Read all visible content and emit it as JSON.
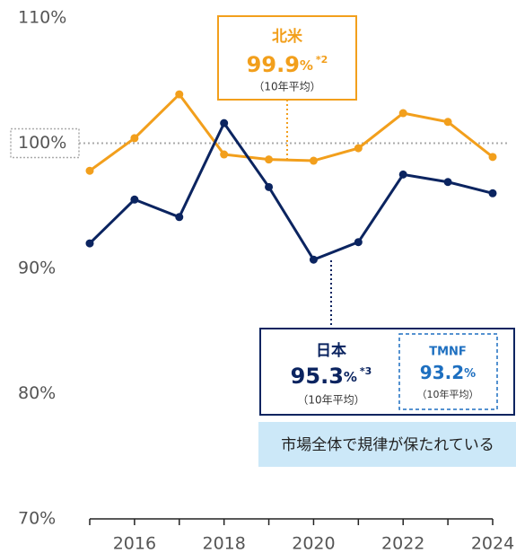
{
  "chart_data": {
    "type": "line",
    "x": [
      2015,
      2016,
      2017,
      2018,
      2019,
      2020,
      2021,
      2022,
      2023,
      2024
    ],
    "series": [
      {
        "name": "北米",
        "color": "#f29f1c",
        "values": [
          97.8,
          100.4,
          103.9,
          99.1,
          98.7,
          98.6,
          99.6,
          102.4,
          101.7,
          98.9
        ]
      },
      {
        "name": "日本",
        "color": "#0b2460",
        "values": [
          92.0,
          95.5,
          94.1,
          101.6,
          96.5,
          90.7,
          92.1,
          97.5,
          96.9,
          96.0
        ]
      }
    ],
    "xlim": [
      2015,
      2024
    ],
    "xticks": [
      2016,
      2018,
      2020,
      2022,
      2024
    ],
    "ylim": [
      70,
      110
    ],
    "yticks": [
      {
        "value": 70,
        "label": "70%"
      },
      {
        "value": 80,
        "label": "80%"
      },
      {
        "value": 90,
        "label": "90%"
      },
      {
        "value": 100,
        "label": "100%"
      },
      {
        "value": 110,
        "label": "110%"
      }
    ],
    "reference_line": 100,
    "annotations": [
      {
        "title": "北米",
        "value": 99.9,
        "unit": "%",
        "note": "*2",
        "sub": "（10年平均）"
      },
      {
        "title": "日本",
        "value": 95.3,
        "unit": "%",
        "note": "*3",
        "sub": "（10年平均）"
      },
      {
        "title": "TMNF",
        "value": 93.2,
        "unit": "%",
        "sub": "（10年平均）"
      }
    ],
    "banner": "市場全体で規律が保たれている"
  }
}
